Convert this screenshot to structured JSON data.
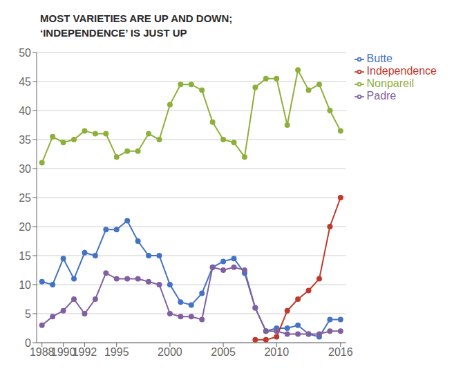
{
  "chart_data": {
    "type": "line",
    "title": "MOST VARIETIES ARE UP AND DOWN;",
    "subtitle": "‘INDEPENDENCE’ IS JUST UP",
    "x": [
      1988,
      1989,
      1990,
      1991,
      1992,
      1993,
      1994,
      1995,
      1996,
      1997,
      1998,
      1999,
      2000,
      2001,
      2002,
      2003,
      2004,
      2005,
      2006,
      2007,
      2008,
      2009,
      2010,
      2011,
      2012,
      2013,
      2014,
      2015,
      2016
    ],
    "series": [
      {
        "name": "Butte",
        "color": "#4472c4",
        "marker": "circle",
        "values": [
          10.5,
          10.0,
          14.5,
          11.0,
          15.5,
          15.0,
          19.5,
          19.5,
          21.0,
          17.5,
          15.0,
          15.0,
          10.0,
          7.0,
          6.5,
          8.5,
          13.0,
          14.0,
          14.5,
          12.0,
          6.0,
          2.0,
          2.5,
          2.5,
          3.0,
          1.5,
          1.0,
          4.0,
          4.0
        ]
      },
      {
        "name": "Independence",
        "color": "#c0392b",
        "marker": "circle",
        "values": [
          null,
          null,
          null,
          null,
          null,
          null,
          null,
          null,
          null,
          null,
          null,
          null,
          null,
          null,
          null,
          null,
          null,
          null,
          null,
          null,
          0.5,
          0.5,
          1.0,
          5.5,
          7.5,
          9.0,
          11.0,
          20.0,
          25.0
        ]
      },
      {
        "name": "Nonpareil",
        "color": "#8db03a",
        "marker": "circle",
        "values": [
          31.0,
          35.5,
          34.5,
          35.0,
          36.5,
          36.0,
          36.0,
          32.0,
          33.0,
          33.0,
          36.0,
          35.0,
          41.0,
          44.5,
          44.5,
          43.5,
          38.0,
          35.0,
          34.5,
          32.0,
          44.0,
          45.5,
          45.5,
          37.5,
          47.0,
          43.5,
          44.5,
          40.0,
          36.5
        ]
      },
      {
        "name": "Padre",
        "color": "#8060a0",
        "marker": "circle",
        "values": [
          3.0,
          4.5,
          5.5,
          7.5,
          5.0,
          7.5,
          12.0,
          11.0,
          11.0,
          11.0,
          10.5,
          10.0,
          5.0,
          4.5,
          4.5,
          4.0,
          13.0,
          12.5,
          13.0,
          12.5,
          6.0,
          2.0,
          2.0,
          1.5,
          1.5,
          1.5,
          1.5,
          2.0,
          2.0
        ]
      }
    ],
    "xlim": [
      1987.5,
      2016.5
    ],
    "xticks": [
      1988,
      1990,
      1992,
      1995,
      2000,
      2005,
      2010,
      2016
    ],
    "ylim": [
      0,
      50
    ],
    "yticks": [
      0,
      5,
      10,
      15,
      20,
      25,
      30,
      35,
      40,
      45,
      50
    ],
    "grid": "y",
    "legend": "upper right"
  }
}
